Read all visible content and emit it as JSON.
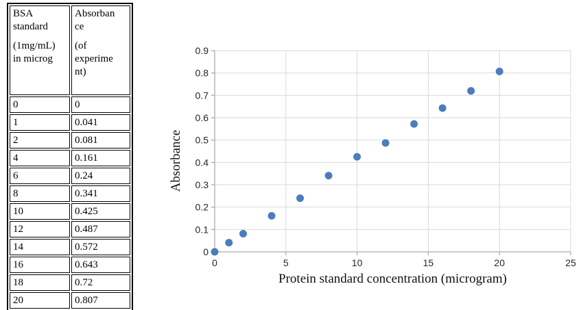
{
  "table": {
    "headers": [
      {
        "text": "BSA standard (1mg/mL) in microg",
        "lines": [
          "BSA",
          "standard",
          "",
          "(1mg/mL)",
          "in microg"
        ]
      },
      {
        "text": "Absorbance (of experiment)",
        "lines": [
          "Absorban",
          "ce",
          "",
          "(of",
          "experime",
          "nt)"
        ]
      }
    ],
    "rows": [
      [
        "0",
        "0"
      ],
      [
        "1",
        "0.041"
      ],
      [
        "2",
        "0.081"
      ],
      [
        "4",
        "0.161"
      ],
      [
        "6",
        "0.24"
      ],
      [
        "8",
        "0.341"
      ],
      [
        "10",
        "0.425"
      ],
      [
        "12",
        "0.487"
      ],
      [
        "14",
        "0.572"
      ],
      [
        "16",
        "0.643"
      ],
      [
        "18",
        "0.72"
      ],
      [
        "20",
        "0.807"
      ]
    ]
  },
  "chart_data": {
    "type": "scatter",
    "title": "",
    "x": [
      0,
      1,
      2,
      4,
      6,
      8,
      10,
      12,
      14,
      16,
      18,
      20
    ],
    "y": [
      0,
      0.041,
      0.081,
      0.161,
      0.24,
      0.341,
      0.425,
      0.487,
      0.572,
      0.643,
      0.72,
      0.807
    ],
    "xlabel": "Protein standard concentration (microgram)",
    "ylabel": "Absorbance",
    "xlim": [
      0,
      25
    ],
    "ylim": [
      0,
      0.9
    ],
    "xticks": [
      0,
      5,
      10,
      15,
      20,
      25
    ],
    "yticks": [
      0,
      0.1,
      0.2,
      0.3,
      0.4,
      0.5,
      0.6,
      0.7,
      0.8,
      0.9
    ],
    "grid": true,
    "legend": "none",
    "colors": {
      "marker": "#4A7EBB",
      "gridline": "#D9D9D9",
      "axis_line": "#ABABAB",
      "tick_label": "#262626",
      "axis_title": "#111111"
    }
  }
}
